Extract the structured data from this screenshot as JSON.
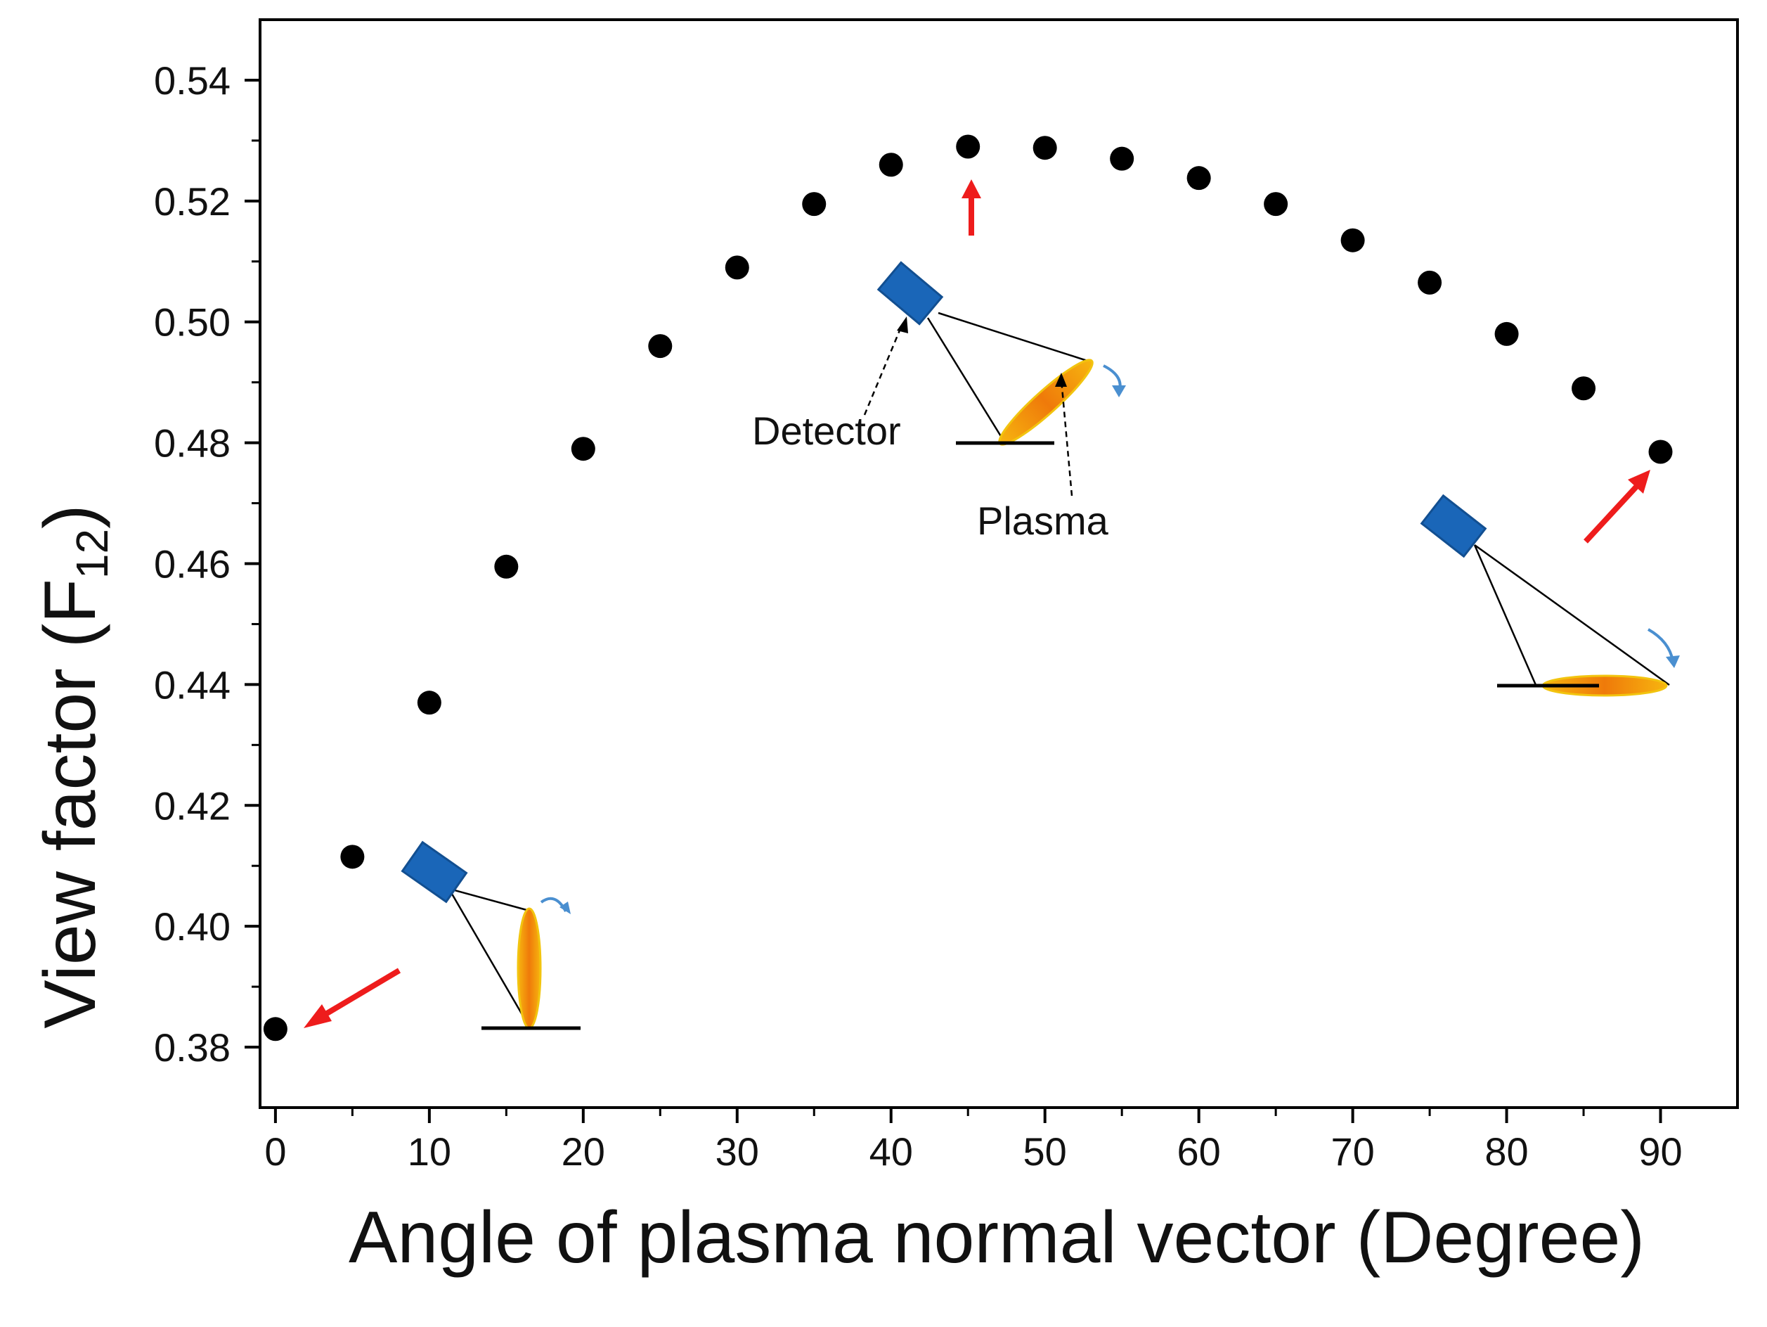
{
  "chart_data": {
    "type": "scatter",
    "title": "",
    "xlabel": "Angle of plasma normal vector (Degree)",
    "ylabel_main": "View factor (F",
    "ylabel_sub": "12",
    "ylabel_close": ")",
    "xlim": [
      -1,
      95
    ],
    "ylim": [
      0.37,
      0.55
    ],
    "xticks": [
      0,
      10,
      20,
      30,
      40,
      50,
      60,
      70,
      80,
      90
    ],
    "yticks": [
      0.38,
      0.4,
      0.42,
      0.44,
      0.46,
      0.48,
      0.5,
      0.52,
      0.54
    ],
    "x": [
      0,
      5,
      10,
      15,
      20,
      25,
      30,
      35,
      40,
      45,
      50,
      55,
      60,
      65,
      70,
      75,
      80,
      85,
      90
    ],
    "y": [
      0.383,
      0.4115,
      0.437,
      0.4595,
      0.479,
      0.496,
      0.509,
      0.5195,
      0.526,
      0.529,
      0.5288,
      0.527,
      0.5238,
      0.5195,
      0.5135,
      0.5065,
      0.498,
      0.489,
      0.4785
    ],
    "grid": false,
    "annotations": {
      "detector_label": "Detector",
      "plasma_label": "Plasma"
    },
    "colors": {
      "point": "#000000",
      "arrow": "#ee1c1c",
      "detector": "#1a66b8",
      "plasma": "#f0880a",
      "rotation": "#4a8fd0"
    }
  }
}
